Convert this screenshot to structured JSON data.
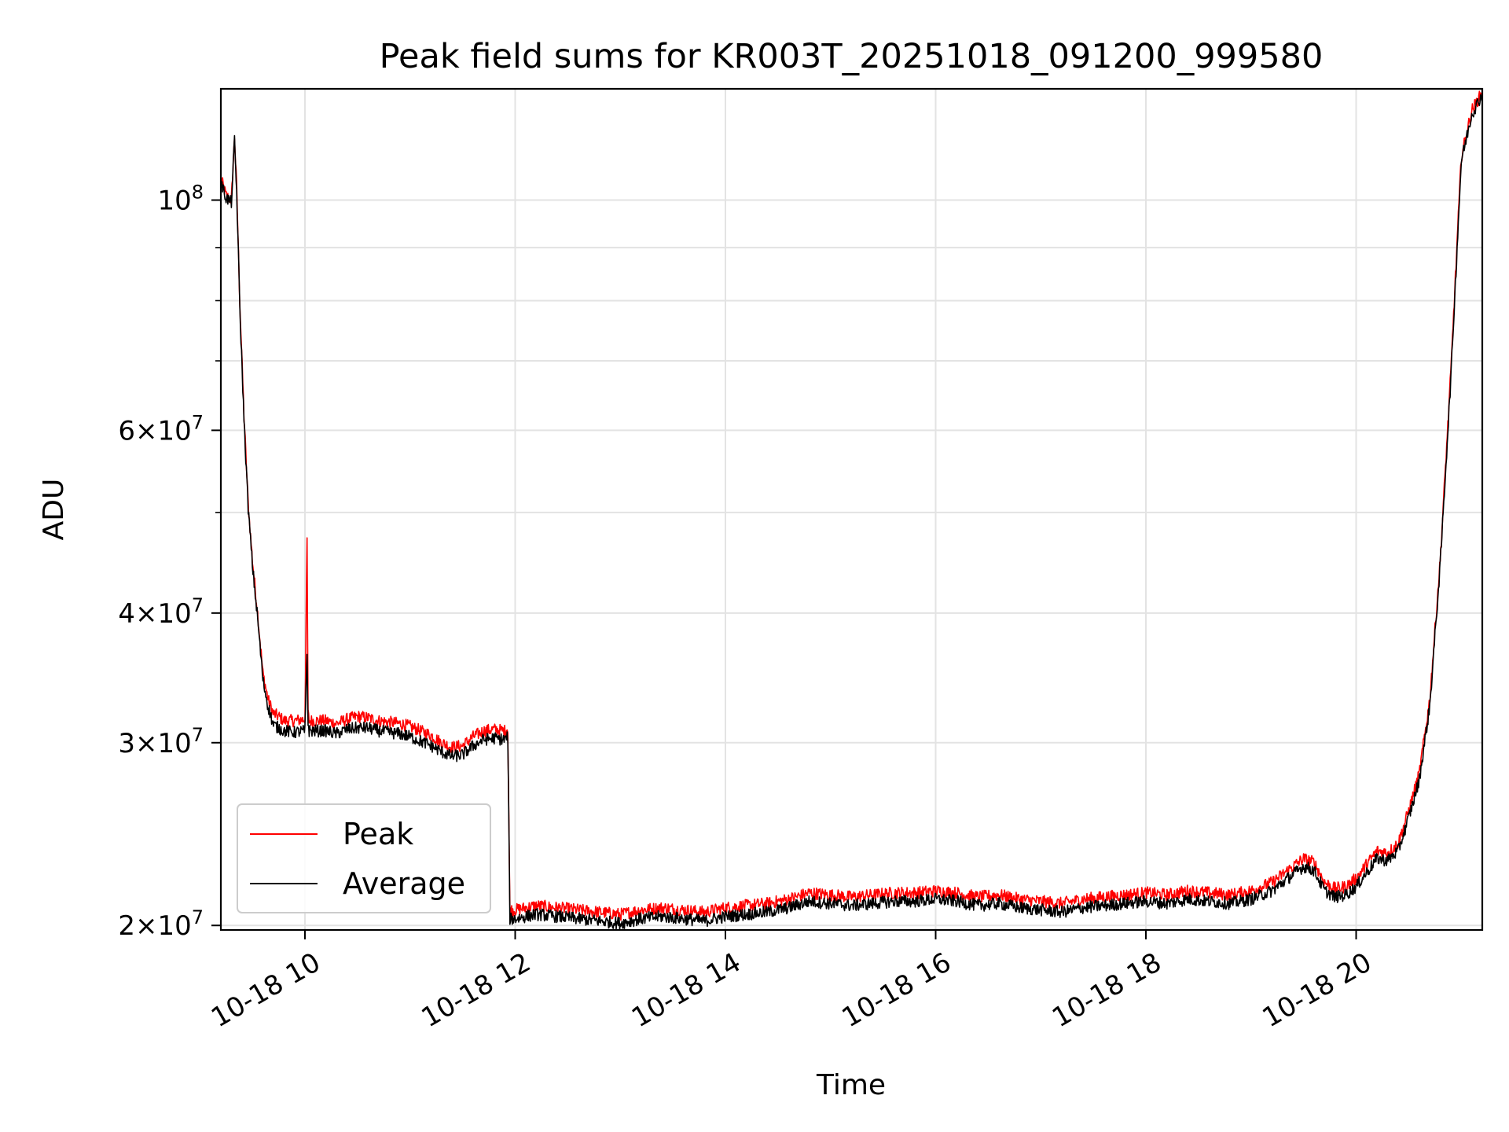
{
  "chart_data": {
    "type": "line",
    "title": "Peak field sums for KR003T_20251018_091200_999580",
    "xlabel": "Time",
    "ylabel": "ADU",
    "yscale": "log",
    "x_unit": "hours of day (2025-10-18)",
    "xlim": [
      9.2,
      21.2
    ],
    "ylim": [
      19800000,
      128000000
    ],
    "x_ticks": [
      {
        "value": 10,
        "label": "10-18 10"
      },
      {
        "value": 12,
        "label": "10-18 12"
      },
      {
        "value": 14,
        "label": "10-18 14"
      },
      {
        "value": 16,
        "label": "10-18 16"
      },
      {
        "value": 18,
        "label": "10-18 18"
      },
      {
        "value": 20,
        "label": "10-18 20"
      }
    ],
    "y_ticks": [
      {
        "value": 20000000,
        "base": "2",
        "exp": "7"
      },
      {
        "value": 30000000,
        "base": "3",
        "exp": "7"
      },
      {
        "value": 40000000,
        "base": "4",
        "exp": "7"
      },
      {
        "value": 60000000,
        "base": "6",
        "exp": "7"
      },
      {
        "value": 100000000,
        "base": "",
        "exp": "8"
      }
    ],
    "y_minor_ticks": [
      50000000,
      70000000,
      80000000,
      90000000
    ],
    "grid": true,
    "legend": {
      "placement": "lower-left"
    },
    "series": [
      {
        "name": "Peak",
        "color": "#ff0000",
        "x": [
          9.2,
          9.25,
          9.3,
          9.33,
          9.35,
          9.38,
          9.42,
          9.46,
          9.5,
          9.55,
          9.6,
          9.65,
          9.7,
          9.75,
          9.8,
          9.9,
          10.0,
          10.02,
          10.03,
          10.04,
          10.1,
          10.2,
          10.3,
          10.4,
          10.5,
          10.6,
          10.7,
          10.8,
          10.9,
          11.0,
          11.1,
          11.2,
          11.3,
          11.4,
          11.5,
          11.6,
          11.7,
          11.8,
          11.9,
          11.93,
          11.95,
          12.0,
          12.2,
          12.4,
          12.6,
          12.8,
          13.0,
          13.2,
          13.4,
          13.6,
          13.8,
          14.0,
          14.2,
          14.4,
          14.6,
          14.8,
          15.0,
          15.2,
          15.4,
          15.6,
          15.8,
          16.0,
          16.2,
          16.4,
          16.6,
          16.8,
          17.0,
          17.2,
          17.4,
          17.6,
          17.8,
          18.0,
          18.2,
          18.4,
          18.6,
          18.8,
          19.0,
          19.2,
          19.4,
          19.5,
          19.6,
          19.7,
          19.8,
          19.9,
          20.0,
          20.1,
          20.2,
          20.3,
          20.4,
          20.5,
          20.6,
          20.7,
          20.8,
          20.9,
          21.0,
          21.1,
          21.2
        ],
        "values": [
          105000000,
          101000000,
          100000000,
          115000000,
          103000000,
          80000000,
          62000000,
          51000000,
          45000000,
          40000000,
          35000000,
          33000000,
          32000000,
          31800000,
          31500000,
          31500000,
          31600000,
          47000000,
          32000000,
          31500000,
          31500000,
          31500000,
          31300000,
          31600000,
          31800000,
          31700000,
          31500000,
          31400000,
          31300000,
          31100000,
          30800000,
          30500000,
          30000000,
          29700000,
          29800000,
          30400000,
          30800000,
          30900000,
          30800000,
          31000000,
          20700000,
          20700000,
          20900000,
          20800000,
          20700000,
          20600000,
          20500000,
          20700000,
          20800000,
          20700000,
          20600000,
          20800000,
          20900000,
          21000000,
          21200000,
          21500000,
          21400000,
          21300000,
          21400000,
          21500000,
          21500000,
          21600000,
          21500000,
          21300000,
          21400000,
          21200000,
          21100000,
          21000000,
          21200000,
          21300000,
          21400000,
          21500000,
          21400000,
          21600000,
          21500000,
          21400000,
          21600000,
          22000000,
          22800000,
          23200000,
          23000000,
          22000000,
          21700000,
          21800000,
          22200000,
          22900000,
          23600000,
          23500000,
          24000000,
          25800000,
          28000000,
          33000000,
          45000000,
          68000000,
          110000000,
          122000000,
          127000000
        ]
      },
      {
        "name": "Average",
        "color": "#000000",
        "x": [
          9.2,
          9.25,
          9.3,
          9.33,
          9.35,
          9.38,
          9.42,
          9.46,
          9.5,
          9.55,
          9.6,
          9.65,
          9.7,
          9.75,
          9.8,
          9.9,
          10.0,
          10.02,
          10.03,
          10.04,
          10.1,
          10.2,
          10.3,
          10.4,
          10.5,
          10.6,
          10.7,
          10.8,
          10.9,
          11.0,
          11.1,
          11.2,
          11.3,
          11.4,
          11.5,
          11.6,
          11.7,
          11.8,
          11.9,
          11.93,
          11.95,
          12.0,
          12.2,
          12.4,
          12.6,
          12.8,
          13.0,
          13.2,
          13.4,
          13.6,
          13.8,
          14.0,
          14.2,
          14.4,
          14.6,
          14.8,
          15.0,
          15.2,
          15.4,
          15.6,
          15.8,
          16.0,
          16.2,
          16.4,
          16.6,
          16.8,
          17.0,
          17.2,
          17.4,
          17.6,
          17.8,
          18.0,
          18.2,
          18.4,
          18.6,
          18.8,
          19.0,
          19.2,
          19.4,
          19.5,
          19.6,
          19.7,
          19.8,
          19.9,
          20.0,
          20.1,
          20.2,
          20.3,
          20.4,
          20.5,
          20.6,
          20.7,
          20.8,
          20.9,
          21.0,
          21.1,
          21.2
        ],
        "values": [
          104000000,
          100500000,
          99500000,
          114000000,
          102000000,
          79000000,
          61500000,
          50500000,
          44500000,
          39500000,
          34500000,
          32500000,
          31200000,
          31000000,
          30800000,
          30700000,
          30800000,
          36500000,
          31300000,
          30800000,
          30800000,
          30800000,
          30600000,
          30900000,
          31000000,
          31000000,
          30800000,
          30700000,
          30600000,
          30400000,
          30100000,
          29800000,
          29400000,
          29100000,
          29200000,
          29800000,
          30200000,
          30300000,
          30200000,
          30400000,
          20300000,
          20300000,
          20500000,
          20400000,
          20300000,
          20200000,
          20100000,
          20300000,
          20400000,
          20300000,
          20200000,
          20400000,
          20500000,
          20600000,
          20800000,
          21100000,
          21000000,
          20900000,
          21000000,
          21100000,
          21100000,
          21200000,
          21100000,
          20900000,
          21000000,
          20800000,
          20700000,
          20600000,
          20800000,
          20900000,
          21000000,
          21100000,
          21000000,
          21200000,
          21100000,
          21000000,
          21200000,
          21600000,
          22400000,
          22800000,
          22600000,
          21600000,
          21300000,
          21400000,
          21800000,
          22500000,
          23200000,
          23100000,
          23600000,
          25400000,
          27600000,
          32500000,
          44500000,
          67000000,
          109000000,
          121000000,
          126500000
        ]
      }
    ]
  }
}
